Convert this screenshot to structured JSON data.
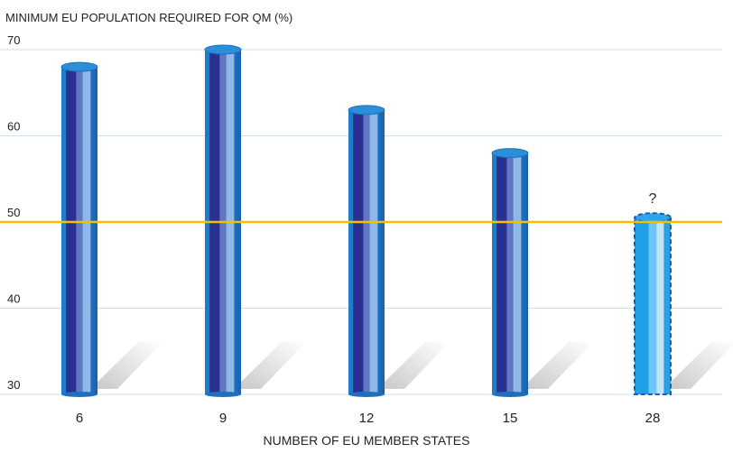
{
  "chart_data": {
    "type": "bar",
    "title": "MINIMUM EU POPULATION REQUIRED FOR QM (%)",
    "xlabel": "NUMBER OF EU MEMBER STATES",
    "ylabel": "",
    "categories": [
      "6",
      "9",
      "12",
      "15",
      "28"
    ],
    "values": [
      68,
      70,
      63,
      58,
      50.5
    ],
    "ylim": [
      30,
      70
    ],
    "yticks": [
      30,
      40,
      50,
      60,
      70
    ],
    "grid": true,
    "reference_line": {
      "value": 50,
      "color": "#f2c200"
    },
    "annotations": [
      {
        "category": "28",
        "text": "?"
      }
    ],
    "uncertain_categories": [
      "28"
    ],
    "colors": {
      "bar_dark": "#2b2f8f",
      "bar_mid": "#1f6fc0",
      "bar_light": "#7fb2e0",
      "bar_cap": "#2a8fd8",
      "uncertain_fill": "#2aa8ea",
      "uncertain_border": "#1a5fb0",
      "grid": "#c9e1f2",
      "shadow": "#cfcfcf"
    }
  }
}
